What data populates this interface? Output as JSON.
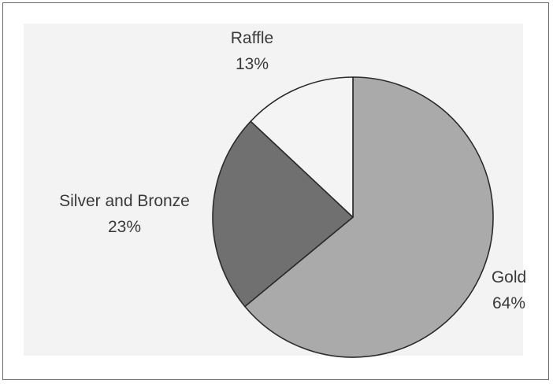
{
  "chart_data": {
    "type": "pie",
    "start_angle_deg": 0,
    "direction": "clockwise",
    "slices": [
      {
        "label": "Gold",
        "percent_label": "64%",
        "value": 64,
        "color": "#aaaaaa"
      },
      {
        "label": "Silver and Bronze",
        "percent_label": "23%",
        "value": 23,
        "color": "#707070"
      },
      {
        "label": "Raffle",
        "percent_label": "13%",
        "value": 13,
        "color": "#f4f4f4"
      }
    ]
  }
}
